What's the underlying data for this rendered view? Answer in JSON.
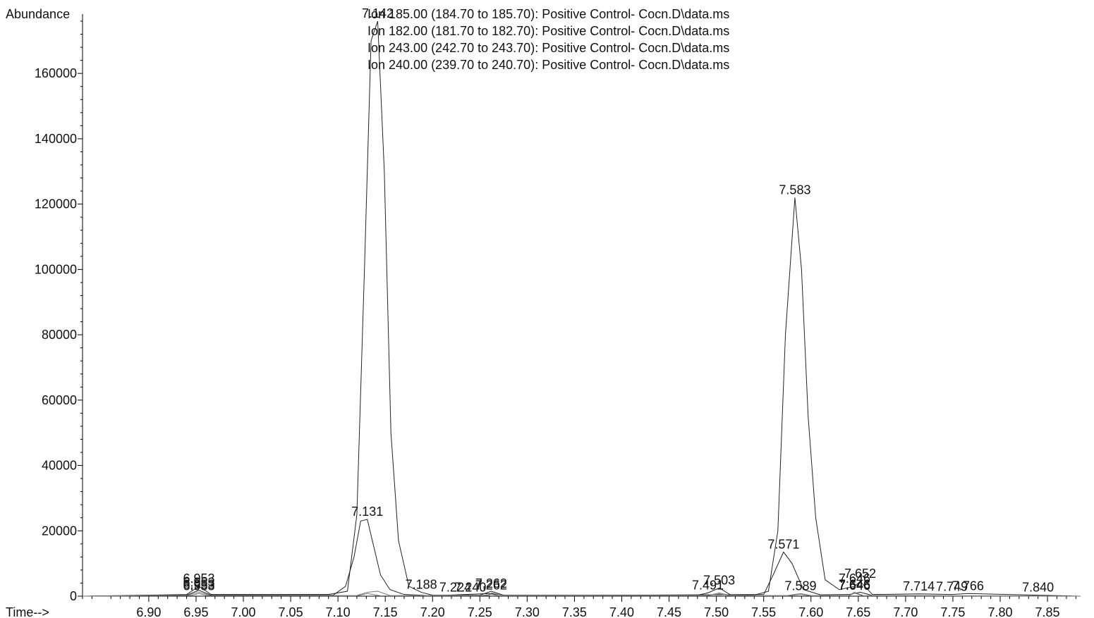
{
  "chart_data": {
    "type": "line",
    "ylabel": "Abundance",
    "xlabel": "Time-->",
    "xlim": [
      6.83,
      7.885
    ],
    "ylim": [
      0,
      176000
    ],
    "x_ticks": [
      "6.90",
      "6.95",
      "7.00",
      "7.05",
      "7.10",
      "7.15",
      "7.20",
      "7.25",
      "7.30",
      "7.35",
      "7.40",
      "7.45",
      "7.50",
      "7.55",
      "7.60",
      "7.65",
      "7.70",
      "7.75",
      "7.80",
      "7.85"
    ],
    "y_ticks": [
      "0",
      "20000",
      "40000",
      "60000",
      "80000",
      "100000",
      "120000",
      "140000",
      "160000"
    ],
    "legend": [
      "Ion 185.00 (184.70 to 185.70): Positive Control- Cocn.D\\data.ms",
      "Ion 182.00 (181.70 to 182.70): Positive Control- Cocn.D\\data.ms",
      "Ion 243.00 (242.70 to 243.70): Positive Control- Cocn.D\\data.ms",
      "Ion 240.00 (239.70 to 240.70): Positive Control- Cocn.D\\data.ms"
    ],
    "legend_colors": [
      "#222222",
      "#222222",
      "#777777",
      "#777777"
    ],
    "series": [
      {
        "name": "Ion 185.00 (184.70 to 185.70): Positive Control- Cocn.D\\data.ms",
        "x": [
          6.83,
          6.94,
          6.953,
          6.966,
          7.09,
          7.11,
          7.12,
          7.128,
          7.135,
          7.142,
          7.149,
          7.156,
          7.164,
          7.175,
          7.188,
          7.2,
          7.25,
          7.262,
          7.275,
          7.48,
          7.491,
          7.503,
          7.515,
          7.54,
          7.555,
          7.565,
          7.573,
          7.583,
          7.59,
          7.597,
          7.605,
          7.615,
          7.63,
          7.646,
          7.652,
          7.665,
          7.714,
          7.749,
          7.766,
          7.84,
          7.885
        ],
        "y": [
          0,
          500,
          3000,
          500,
          500,
          1500,
          25000,
          100000,
          170000,
          176000,
          130000,
          50000,
          17000,
          3000,
          1200,
          300,
          300,
          1500,
          300,
          300,
          1000,
          2500,
          400,
          300,
          1500,
          20000,
          80000,
          122000,
          100000,
          55000,
          24000,
          5000,
          2000,
          3000,
          4500,
          500,
          700,
          500,
          800,
          300,
          0
        ]
      },
      {
        "name": "Ion 182.00 (181.70 to 182.70): Positive Control- Cocn.D\\data.ms",
        "x": [
          6.83,
          6.94,
          6.953,
          6.966,
          7.095,
          7.108,
          7.117,
          7.124,
          7.131,
          7.138,
          7.145,
          7.155,
          7.17,
          7.188,
          7.2,
          7.26,
          7.28,
          7.55,
          7.56,
          7.571,
          7.58,
          7.592,
          7.61,
          7.64,
          7.652,
          7.665,
          7.885
        ],
        "y": [
          0,
          300,
          1800,
          300,
          300,
          3000,
          12000,
          23000,
          23500,
          15000,
          6500,
          2000,
          500,
          300,
          100,
          800,
          100,
          500,
          6500,
          13500,
          10000,
          2000,
          400,
          500,
          1200,
          200,
          0
        ]
      },
      {
        "name": "Ion 243.00 (242.70 to 243.70): Positive Control- Cocn.D\\data.ms",
        "x": [
          6.83,
          6.94,
          6.953,
          6.966,
          7.12,
          7.131,
          7.142,
          7.155,
          7.26,
          7.262,
          7.275,
          7.491,
          7.503,
          7.515,
          7.575,
          7.589,
          7.6,
          7.64,
          7.646,
          7.655,
          7.885
        ],
        "y": [
          0,
          200,
          1200,
          200,
          200,
          1200,
          1500,
          200,
          200,
          1000,
          200,
          200,
          1000,
          200,
          200,
          800,
          200,
          200,
          1200,
          200,
          0
        ]
      },
      {
        "name": "Ion 240.00 (239.70 to 240.70): Positive Control- Cocn.D\\data.ms",
        "x": [
          6.83,
          6.945,
          6.953,
          6.962,
          7.12,
          7.131,
          7.145,
          7.25,
          7.262,
          7.27,
          7.49,
          7.503,
          7.515,
          7.575,
          7.589,
          7.6,
          7.64,
          7.646,
          7.655,
          7.885
        ],
        "y": [
          0,
          200,
          800,
          200,
          100,
          800,
          100,
          100,
          600,
          100,
          100,
          700,
          100,
          100,
          500,
          100,
          100,
          900,
          100,
          0
        ]
      }
    ],
    "peak_labels": [
      {
        "text": "7.142",
        "x": 7.142,
        "y": 176000
      },
      {
        "text": "7.131",
        "x": 7.131,
        "y": 23500
      },
      {
        "text": "7.583",
        "x": 7.583,
        "y": 122000
      },
      {
        "text": "7.571",
        "x": 7.571,
        "y": 13500
      },
      {
        "text": "6.953",
        "x": 6.953,
        "y": 3000
      },
      {
        "text": "6.953",
        "x": 6.953,
        "y": 1800
      },
      {
        "text": "6.953",
        "x": 6.953,
        "y": 1200
      },
      {
        "text": "6.953",
        "x": 6.953,
        "y": 800
      },
      {
        "text": "7.188",
        "x": 7.188,
        "y": 1200
      },
      {
        "text": "7.224",
        "x": 7.224,
        "y": 300
      },
      {
        "text": "7.240",
        "x": 7.24,
        "y": 300
      },
      {
        "text": "7.262",
        "x": 7.262,
        "y": 1500
      },
      {
        "text": "7.262",
        "x": 7.262,
        "y": 1000
      },
      {
        "text": "7.491",
        "x": 7.491,
        "y": 1000
      },
      {
        "text": "7.503",
        "x": 7.503,
        "y": 2500
      },
      {
        "text": "7.589",
        "x": 7.589,
        "y": 800
      },
      {
        "text": "7.646",
        "x": 7.646,
        "y": 3000
      },
      {
        "text": "7.646",
        "x": 7.646,
        "y": 1200
      },
      {
        "text": "7.646",
        "x": 7.646,
        "y": 900
      },
      {
        "text": "7.652",
        "x": 7.652,
        "y": 4500
      },
      {
        "text": "7.714",
        "x": 7.714,
        "y": 700
      },
      {
        "text": "7.749",
        "x": 7.749,
        "y": 500
      },
      {
        "text": "7.766",
        "x": 7.766,
        "y": 800
      },
      {
        "text": "7.840",
        "x": 7.84,
        "y": 300
      }
    ],
    "grid": false,
    "legend_position": "top-center"
  }
}
